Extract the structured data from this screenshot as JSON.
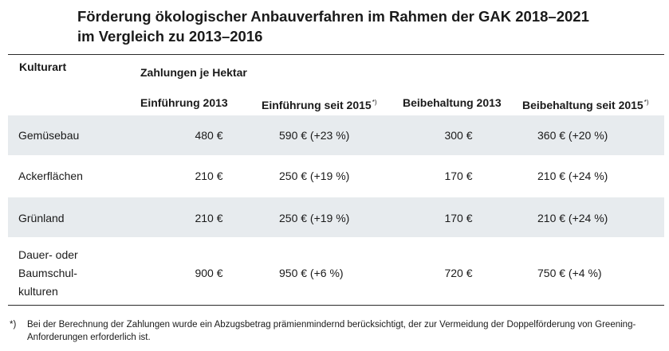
{
  "title": {
    "line1": "Förderung ökologischer Anbauverfahren im Rahmen der GAK 2018–2021",
    "line2": "im Vergleich zu 2013–2016"
  },
  "table": {
    "col_kulturart": "Kulturart",
    "group_header": "Zahlungen je Hektar",
    "columns": [
      {
        "label": "Einführung 2013",
        "mark": ""
      },
      {
        "label": "Einführung seit 2015",
        "mark": "*)"
      },
      {
        "label": "Beibehaltung 2013",
        "mark": ""
      },
      {
        "label": "Beibehaltung seit 2015",
        "mark": "*)"
      }
    ],
    "rows": [
      {
        "kulturart": [
          "Gemüsebau"
        ],
        "values": [
          "480 €",
          "590 € (+23 %)",
          "300 €",
          "360 € (+20 %)"
        ]
      },
      {
        "kulturart": [
          "Ackerflächen"
        ],
        "values": [
          "210 €",
          "250 € (+19 %)",
          "170 €",
          "210 € (+24 %)"
        ]
      },
      {
        "kulturart": [
          "Grünland"
        ],
        "values": [
          "210 €",
          "250 € (+19 %)",
          "170 €",
          "210 € (+24 %)"
        ]
      },
      {
        "kulturart": [
          "Dauer- oder",
          "Baumschul-",
          "kulturen"
        ],
        "values": [
          "900 €",
          "950 € (+6 %)",
          "720 €",
          "750 € (+4 %)"
        ]
      }
    ]
  },
  "footnote": {
    "mark": "*)",
    "text": "Bei der Berechnung der Zahlungen wurde ein Abzugsbetrag prämienmindernd berücksichtigt, der zur Vermeidung der Doppelförderung von Greening-Anforderungen erforderlich ist."
  },
  "colors": {
    "row_shade": "#e7ebee",
    "rule": "#2a2a2a",
    "text": "#1a1a1a"
  }
}
